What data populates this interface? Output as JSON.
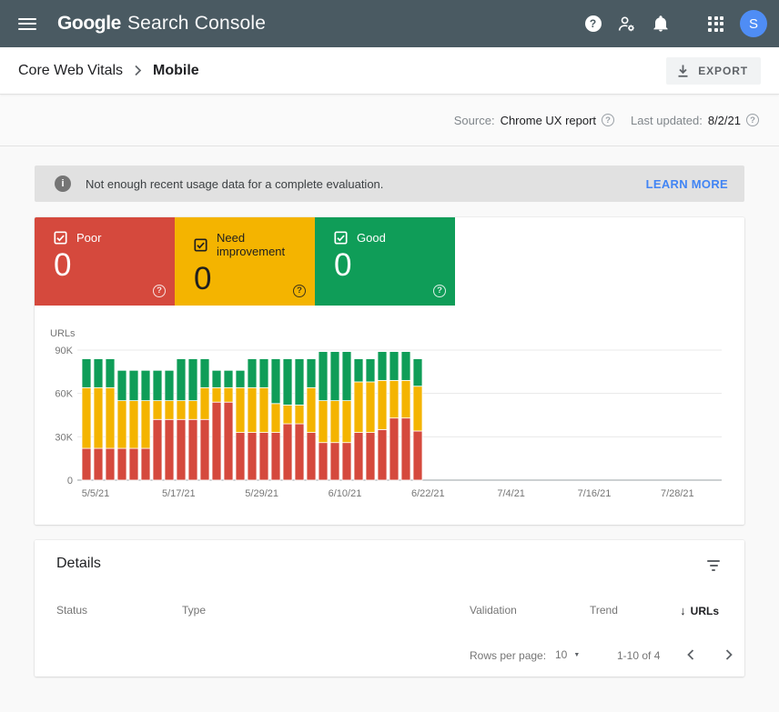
{
  "topbar": {
    "product": "Google",
    "product_suffix": "Search Console",
    "avatar_letter": "S",
    "avatar_color": "#4f8df5",
    "bar_color": "#4a5a62"
  },
  "breadcrumb": {
    "section": "Core Web Vitals",
    "page": "Mobile",
    "export_label": "EXPORT"
  },
  "meta": {
    "source_label": "Source:",
    "source_value": "Chrome UX report",
    "updated_label": "Last updated:",
    "updated_value": "8/2/21"
  },
  "banner": {
    "message": "Not enough recent usage data for a complete evaluation.",
    "action": "LEARN MORE",
    "action_color": "#4285f4"
  },
  "tiles": [
    {
      "label": "Poor",
      "count": "0",
      "color": "#d5493d",
      "text_color": "#ffffff"
    },
    {
      "label": "Need improvement",
      "count": "0",
      "color": "#f4b400",
      "text_color": "#1f1f1f"
    },
    {
      "label": "Good",
      "count": "0",
      "color": "#0f9d58",
      "text_color": "#ffffff"
    }
  ],
  "chart_data": {
    "type": "bar",
    "stacked": true,
    "title": "",
    "ylabel": "URLs",
    "xlabel": "",
    "values_unit": "thousands of URLs",
    "ylim": [
      0,
      90
    ],
    "ytick_values": [
      0,
      30,
      60,
      90
    ],
    "ytick_labels": [
      "0",
      "30K",
      "60K",
      "90K"
    ],
    "xticklabels": [
      "5/5/21",
      "5/17/21",
      "5/29/21",
      "6/10/21",
      "6/22/21",
      "7/4/21",
      "7/16/21",
      "7/28/21"
    ],
    "bars_date_range": "5/5/21 to 6/22/21 (no data after 6/22/21)",
    "grid": true,
    "series": [
      {
        "name": "Poor",
        "color": "#d5493d",
        "values": [
          22,
          22,
          22,
          22,
          22,
          22,
          42,
          42,
          42,
          42,
          42,
          54,
          54,
          33,
          33,
          33,
          33,
          39,
          39,
          33,
          26,
          26,
          26,
          33,
          33,
          35,
          43,
          43,
          34
        ]
      },
      {
        "name": "Need improvement",
        "color": "#f4b400",
        "values": [
          42,
          42,
          42,
          33,
          33,
          33,
          13,
          13,
          13,
          13,
          22,
          10,
          10,
          31,
          31,
          31,
          20,
          13,
          13,
          31,
          29,
          29,
          29,
          35,
          35,
          34,
          26,
          26,
          31
        ]
      },
      {
        "name": "Good",
        "color": "#0f9d58",
        "values": [
          20,
          20,
          20,
          21,
          21,
          21,
          21,
          21,
          29,
          29,
          20,
          12,
          12,
          12,
          20,
          20,
          31,
          32,
          32,
          20,
          34,
          34,
          34,
          16,
          16,
          20,
          20,
          20,
          19
        ]
      }
    ]
  },
  "details": {
    "title": "Details",
    "columns": [
      "Status",
      "Type",
      "Validation",
      "Trend",
      "URLs"
    ],
    "rows": [],
    "footer": {
      "rows_per_page_label": "Rows per page:",
      "rows_per_page_value": "10",
      "range_label": "1-10 of 4"
    }
  },
  "icons": {
    "help_glyph": "?",
    "info_glyph": "i",
    "sort_desc_glyph": "↓",
    "caret_glyph": "▼"
  }
}
